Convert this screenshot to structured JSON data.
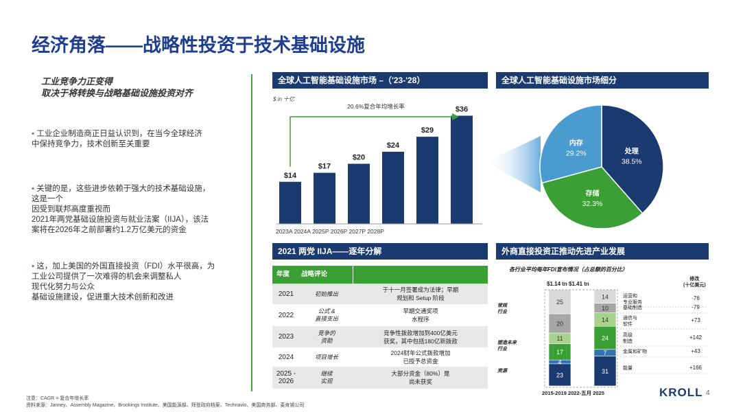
{
  "title": "经济角落——战略性投资于技术基础设施",
  "headline": [
    "工业竞争力正变得",
    "取决于将转换与战略基础设施投资对齐"
  ],
  "bullets": [
    {
      "lines": [
        "工业企业制造商正日益认识到，在当今全球经济",
        "中保持竞争力，技术创新至关重要"
      ]
    },
    {
      "lines": [
        "关键的是，这些进步依赖于强大的技术基础设施，",
        "这是一个",
        "因受到联邦高度重视而",
        "2021年两党基础设施投资与就业法案（IIJA），该法",
        "案将在2026年之前部署约1.2万亿美元的资金"
      ]
    },
    {
      "lines": [
        "这，加上美国的外国直接投资（FDI）水平很高，为",
        "工业公司提供了一次难得的机会来调整私人",
        "现代化努力与公众",
        "基础设施建设，促进重大技术创新和改进"
      ]
    }
  ],
  "market_panel": {
    "header": "全球人工智能基础设施市场 –（'23-'28）",
    "unit_label": "$ in 十亿",
    "cagr_label": "20.6%复合年均增长率",
    "x_axis_text": "2023A 2024A 2025P 2026P 2027P 2028P"
  },
  "segment_panel": {
    "header": "全球人工智能基础设施市场细分"
  },
  "iija_panel": {
    "header": "2021 两党 IIJA——逐年分解",
    "col_headers": [
      "年度",
      "战略评论"
    ],
    "rows": [
      {
        "year": "2021",
        "label": "初始推出",
        "text": "于十一月签署成为法律；早期\n规划和 Setup 阶段"
      },
      {
        "year": "2022",
        "label": "公式 &\n直接支出",
        "text": "早期交通奖项\n水程序"
      },
      {
        "year": "2023",
        "label": "竞争的\n资助",
        "text": "竞争性拨款增加到400亿美元\n获奖，其中包括180亿新拨款"
      },
      {
        "year": "2024",
        "label": "项目增长",
        "text": "2024财年公式拨款增加\n已授予总资金"
      },
      {
        "year": "2025 -\n2026",
        "label": "继续\n实现",
        "text": "大部分资金（80%）是\n尚未获奖"
      }
    ]
  },
  "fdi_panel": {
    "header": "外商直接投资正推动先进产业发展",
    "subtitle": "各行业平均每年FDI宣布情况（占总额的百分比）",
    "totals_label": "$1.14 tn $1.41 tn",
    "change_header": "修改\n(十亿美元)",
    "group_labels": [
      "常规\n行业",
      "塑造未来\n行业",
      "资源"
    ],
    "x_labels": "2015-2019 2022-五月 2025",
    "segments": [
      {
        "name": "运营和\n专业服务",
        "change": "-76",
        "color": "#d9d9d9"
      },
      {
        "name": "基础制造",
        "change": "-79",
        "color": "#a6a6a6"
      },
      {
        "name": "通信与\n软件",
        "change": "+73",
        "color": "#a9d18e"
      },
      {
        "name": "高级\n制造",
        "change": "+142",
        "color": "#3aa035"
      },
      {
        "name": "金属和矿物",
        "change": "+43",
        "color": "#2e75b6"
      },
      {
        "name": "能量",
        "change": "+166",
        "color": "#1b3a6f"
      }
    ],
    "bars": [
      {
        "values": [
          25,
          20,
          11,
          17,
          4,
          23
        ]
      },
      {
        "values": [
          14,
          10,
          14,
          24,
          7,
          31
        ]
      }
    ]
  },
  "footnotes": [
    "注意：CAGR = 复合年增长率",
    "资料来源：Janney、Assembly Magazine、Brookings Institute、美国能源部、拜登政府档案、Technavio、美国商务部、麦肯锡公司"
  ],
  "brand": "KROLL",
  "page_number": "4",
  "chart_data": [
    {
      "type": "bar",
      "categories": [
        "2023A",
        "2024A",
        "2025P",
        "2026P",
        "2027P",
        "2028P"
      ],
      "values": [
        14,
        17,
        20,
        24,
        29,
        36
      ],
      "value_labels": [
        "$14",
        "$17",
        "$20",
        "$24",
        "$29",
        "$36"
      ],
      "title": "全球人工智能基础设施市场 –（'23-'28）",
      "ylabel": "$ in 十亿",
      "ylim": [
        0,
        40
      ],
      "annotation": "20.6%复合年均增长率",
      "color": "#1b3a6f"
    },
    {
      "type": "pie",
      "title": "全球人工智能基础设施市场细分",
      "categories": [
        "处理",
        "存储",
        "内存"
      ],
      "values": [
        38.5,
        32.3,
        29.2
      ],
      "value_labels": [
        "38.5%",
        "32.3%",
        "29.2%"
      ],
      "colors": [
        "#1b3a6f",
        "#3aa035",
        "#4a9bd0"
      ]
    },
    {
      "type": "bar",
      "stacked": true,
      "title": "各行业平均每年FDI宣布情况（占总额的百分比）",
      "categories": [
        "2015-2019",
        "2022-五月 2025"
      ],
      "series": [
        {
          "name": "运营和\n专业服务",
          "values": [
            25,
            14
          ]
        },
        {
          "name": "基础制造",
          "values": [
            20,
            10
          ]
        },
        {
          "name": "通信与\n软件",
          "values": [
            11,
            14
          ]
        },
        {
          "name": "高级\n制造",
          "values": [
            17,
            24
          ]
        },
        {
          "name": "金属和矿物",
          "values": [
            4,
            7
          ]
        },
        {
          "name": "能量",
          "values": [
            23,
            31
          ]
        }
      ]
    }
  ]
}
